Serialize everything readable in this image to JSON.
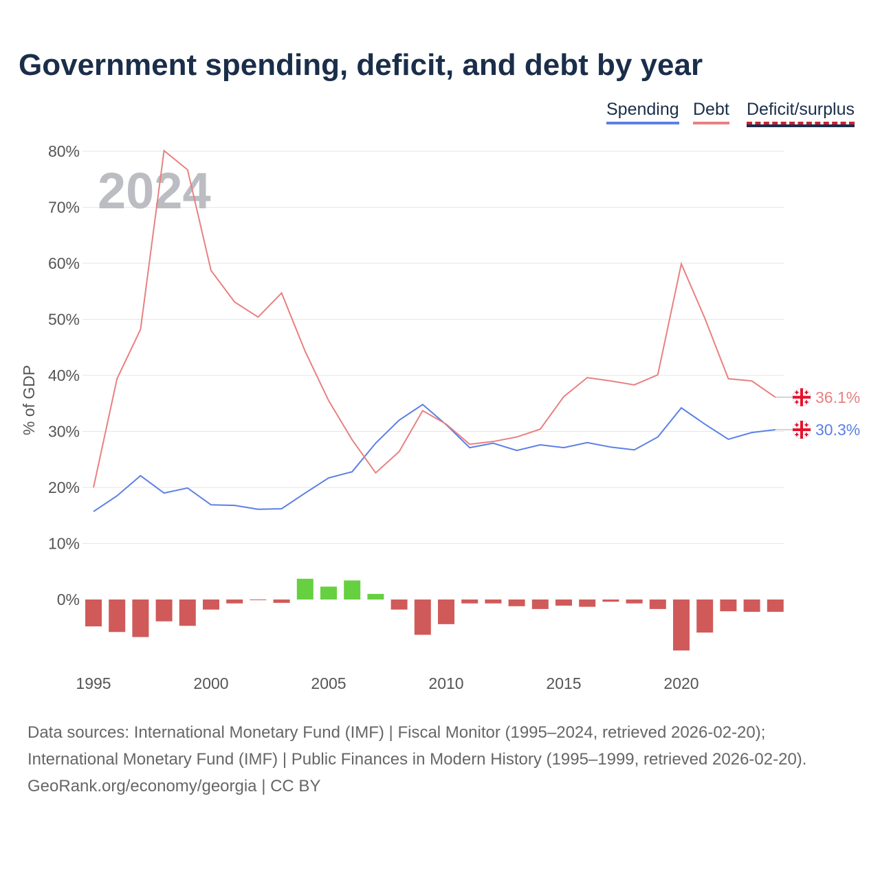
{
  "chart_data": {
    "type": "line",
    "title": "Government spending, deficit, and debt by year",
    "ylabel": "% of GDP",
    "xlabel": "",
    "ylim": [
      -11,
      82
    ],
    "yticks": [
      "0%",
      "10%",
      "20%",
      "30%",
      "40%",
      "50%",
      "60%",
      "70%",
      "80%"
    ],
    "ytick_values": [
      0,
      10,
      20,
      30,
      40,
      50,
      60,
      70,
      80
    ],
    "xticks": [
      "1995",
      "2000",
      "2005",
      "2010",
      "2015",
      "2020"
    ],
    "xtick_values": [
      1995,
      2000,
      2005,
      2010,
      2015,
      2020
    ],
    "year_watermark": "2024",
    "legend_placement": "top-right",
    "x": [
      1995,
      1996,
      1997,
      1998,
      1999,
      2000,
      2001,
      2002,
      2003,
      2004,
      2005,
      2006,
      2007,
      2008,
      2009,
      2010,
      2011,
      2012,
      2013,
      2014,
      2015,
      2016,
      2017,
      2018,
      2019,
      2020,
      2021,
      2022,
      2023,
      2024
    ],
    "series": [
      {
        "name": "Spending",
        "type": "line",
        "color": "#5b7fe6",
        "end_label": "30.3%",
        "values": [
          15.7,
          18.5,
          22.1,
          19.0,
          19.9,
          16.9,
          16.8,
          16.1,
          16.2,
          19.0,
          21.7,
          22.8,
          27.9,
          32.0,
          34.8,
          31.2,
          27.1,
          27.9,
          26.6,
          27.6,
          27.1,
          28.0,
          27.2,
          26.7,
          29.0,
          34.2,
          31.3,
          28.6,
          29.8,
          30.3
        ]
      },
      {
        "name": "Debt",
        "type": "line",
        "color": "#e88080",
        "end_label": "36.1%",
        "values": [
          20.0,
          39.4,
          48.2,
          80.1,
          76.7,
          58.7,
          53.1,
          50.4,
          54.7,
          44.3,
          35.5,
          28.5,
          22.6,
          26.4,
          33.7,
          31.3,
          27.7,
          28.2,
          29.0,
          30.4,
          36.2,
          39.6,
          39.0,
          38.3,
          40.1,
          59.9,
          50.2,
          39.4,
          39.0,
          36.1
        ]
      },
      {
        "name": "Deficit/surplus",
        "type": "bar",
        "color_positive": "#66d040",
        "color_negative": "#d05a5a",
        "values": [
          -4.8,
          -5.8,
          -6.7,
          -3.9,
          -4.7,
          -1.8,
          -0.7,
          -0.1,
          -0.6,
          3.7,
          2.3,
          3.4,
          1.0,
          -1.8,
          -6.3,
          -4.4,
          -0.7,
          -0.7,
          -1.2,
          -1.7,
          -1.1,
          -1.3,
          -0.4,
          -0.7,
          -1.7,
          -9.1,
          -5.9,
          -2.1,
          -2.2,
          -2.2
        ]
      }
    ]
  },
  "legend": {
    "spending": "Spending",
    "debt": "Debt",
    "deficit": "Deficit/surplus"
  },
  "sources": {
    "line1": "Data sources: International Monetary Fund (IMF) | Fiscal Monitor (1995–2024, retrieved 2026-02-20); International Monetary Fund (IMF) | Public Finances in Modern History (1995–1999, retrieved 2026-02-20).",
    "line2": "GeoRank.org/economy/georgia | CC BY"
  }
}
